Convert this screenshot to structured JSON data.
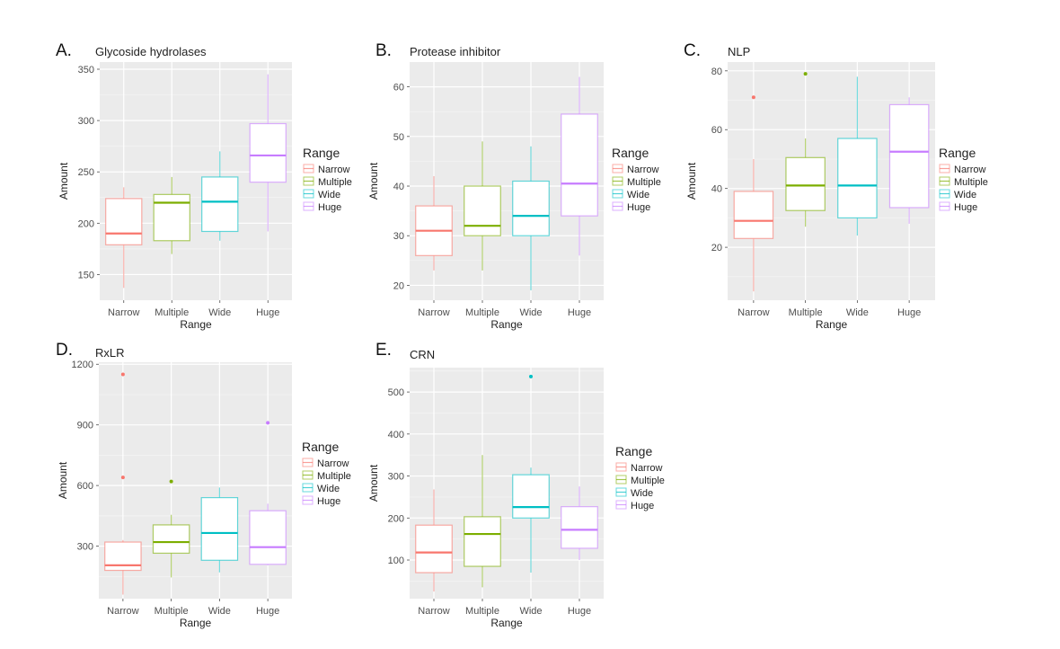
{
  "legend_entries": [
    {
      "label": "Narrow",
      "color": "#F8766D"
    },
    {
      "label": "Multiple",
      "color": "#7CAE00"
    },
    {
      "label": "Wide",
      "color": "#00BFC4"
    },
    {
      "label": "Huge",
      "color": "#C77CFF"
    }
  ],
  "chart_data": [
    {
      "type": "box",
      "panel_letter": "A.",
      "title": "Glycoside hydrolases",
      "xlabel": "Range",
      "ylabel": "Amount",
      "legend_title": "Range",
      "legend_position": "right",
      "grid": true,
      "categories": [
        "Narrow",
        "Multiple",
        "Wide",
        "Huge"
      ],
      "y_ticks": [
        150,
        200,
        250,
        300,
        350
      ],
      "ylim": [
        125,
        357
      ],
      "boxes": [
        {
          "category": "Narrow",
          "min": 137,
          "q1": 179,
          "median": 190,
          "q3": 224,
          "max": 235,
          "outliers": []
        },
        {
          "category": "Multiple",
          "min": 170,
          "q1": 183,
          "median": 220,
          "q3": 228,
          "max": 245,
          "outliers": []
        },
        {
          "category": "Wide",
          "min": 183,
          "q1": 192,
          "median": 221,
          "q3": 245,
          "max": 270,
          "outliers": []
        },
        {
          "category": "Huge",
          "min": 192,
          "q1": 240,
          "median": 266,
          "q3": 297,
          "max": 345,
          "outliers": []
        }
      ]
    },
    {
      "type": "box",
      "panel_letter": "B.",
      "title": "Protease inhibitor",
      "xlabel": "Range",
      "ylabel": "Amount",
      "legend_title": "Range",
      "legend_position": "right",
      "grid": true,
      "categories": [
        "Narrow",
        "Multiple",
        "Wide",
        "Huge"
      ],
      "y_ticks": [
        20,
        30,
        40,
        50,
        60
      ],
      "ylim": [
        17,
        65
      ],
      "boxes": [
        {
          "category": "Narrow",
          "min": 23,
          "q1": 26,
          "median": 31,
          "q3": 36,
          "max": 42,
          "outliers": []
        },
        {
          "category": "Multiple",
          "min": 23,
          "q1": 30,
          "median": 32,
          "q3": 40,
          "max": 49,
          "outliers": []
        },
        {
          "category": "Wide",
          "min": 19,
          "q1": 30,
          "median": 34,
          "q3": 41,
          "max": 48,
          "outliers": []
        },
        {
          "category": "Huge",
          "min": 26,
          "q1": 34,
          "median": 40.5,
          "q3": 54.5,
          "max": 62,
          "outliers": []
        }
      ]
    },
    {
      "type": "box",
      "panel_letter": "C.",
      "title": "NLP",
      "xlabel": "Range",
      "ylabel": "Amount",
      "legend_title": "Range",
      "legend_position": "right",
      "grid": true,
      "categories": [
        "Narrow",
        "Multiple",
        "Wide",
        "Huge"
      ],
      "y_ticks": [
        20,
        40,
        60,
        80
      ],
      "ylim": [
        2,
        83
      ],
      "boxes": [
        {
          "category": "Narrow",
          "min": 5,
          "q1": 23,
          "median": 29,
          "q3": 39,
          "max": 50,
          "outliers": [
            71
          ]
        },
        {
          "category": "Multiple",
          "min": 27,
          "q1": 32.5,
          "median": 41,
          "q3": 50.5,
          "max": 57,
          "outliers": [
            79
          ]
        },
        {
          "category": "Wide",
          "min": 24,
          "q1": 30,
          "median": 41,
          "q3": 57,
          "max": 78,
          "outliers": []
        },
        {
          "category": "Huge",
          "min": 28,
          "q1": 33.5,
          "median": 52.5,
          "q3": 68.5,
          "max": 71,
          "outliers": []
        }
      ]
    },
    {
      "type": "box",
      "panel_letter": "D.",
      "title": "RxLR",
      "xlabel": "Range",
      "ylabel": "Amount",
      "legend_title": "Range",
      "legend_position": "right",
      "grid": true,
      "categories": [
        "Narrow",
        "Multiple",
        "Wide",
        "Huge"
      ],
      "y_ticks": [
        300,
        600,
        900,
        1200
      ],
      "ylim": [
        40,
        1210
      ],
      "boxes": [
        {
          "category": "Narrow",
          "min": 60,
          "q1": 180,
          "median": 205,
          "q3": 320,
          "max": 330,
          "outliers": [
            640,
            1150
          ]
        },
        {
          "category": "Multiple",
          "min": 145,
          "q1": 265,
          "median": 320,
          "q3": 405,
          "max": 455,
          "outliers": [
            620
          ]
        },
        {
          "category": "Wide",
          "min": 170,
          "q1": 230,
          "median": 365,
          "q3": 540,
          "max": 590,
          "outliers": []
        },
        {
          "category": "Huge",
          "min": 205,
          "q1": 210,
          "median": 295,
          "q3": 475,
          "max": 510,
          "outliers": [
            910
          ]
        }
      ]
    },
    {
      "type": "box",
      "panel_letter": "E.",
      "title": "CRN",
      "xlabel": "Range",
      "ylabel": "Amount",
      "legend_title": "Range",
      "legend_position": "right",
      "grid": true,
      "categories": [
        "Narrow",
        "Multiple",
        "Wide",
        "Huge"
      ],
      "y_ticks": [
        100,
        200,
        300,
        400,
        500
      ],
      "ylim": [
        8,
        558
      ],
      "boxes": [
        {
          "category": "Narrow",
          "min": 25,
          "q1": 70,
          "median": 118,
          "q3": 183,
          "max": 268,
          "outliers": []
        },
        {
          "category": "Multiple",
          "min": 35,
          "q1": 85,
          "median": 162,
          "q3": 203,
          "max": 350,
          "outliers": []
        },
        {
          "category": "Wide",
          "min": 70,
          "q1": 200,
          "median": 226,
          "q3": 303,
          "max": 320,
          "outliers": [
            537
          ]
        },
        {
          "category": "Huge",
          "min": 100,
          "q1": 128,
          "median": 172,
          "q3": 227,
          "max": 275,
          "outliers": []
        }
      ]
    }
  ]
}
